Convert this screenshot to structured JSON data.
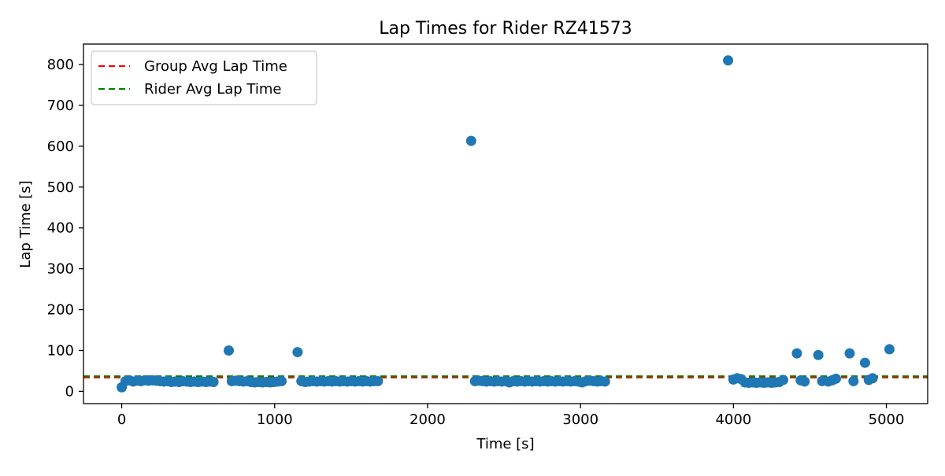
{
  "chart_data": {
    "type": "scatter",
    "title": "Lap Times for Rider RZ41573",
    "xlabel": "Time [s]",
    "ylabel": "Lap Time [s]",
    "xlim": [
      -250,
      5270
    ],
    "ylim": [
      -30,
      850
    ],
    "xticks": [
      0,
      1000,
      2000,
      3000,
      4000,
      5000
    ],
    "yticks": [
      0,
      100,
      200,
      300,
      400,
      500,
      600,
      700,
      800
    ],
    "grid": false,
    "legend_position": "top-left",
    "colors": {
      "points": "#1f77b4",
      "group_avg": "#ff0000",
      "rider_avg": "#008000"
    },
    "reference_lines": [
      {
        "name": "Group Avg Lap Time",
        "y": 34,
        "color": "#ff0000",
        "style": "dashed"
      },
      {
        "name": "Rider Avg Lap Time",
        "y": 37,
        "color": "#008000",
        "style": "dashed"
      }
    ],
    "series": [
      {
        "x": [
          0,
          25,
          50,
          75,
          100,
          125,
          150,
          175,
          200,
          225,
          250,
          275,
          300,
          325,
          350,
          375,
          400,
          425,
          450,
          475,
          500,
          525,
          550,
          575,
          600,
          700,
          720,
          745,
          770,
          795,
          820,
          845,
          870,
          895,
          920,
          945,
          970,
          995,
          1020,
          1045,
          1150,
          1175,
          1200,
          1225,
          1250,
          1275,
          1300,
          1325,
          1350,
          1375,
          1400,
          1425,
          1450,
          1475,
          1500,
          1525,
          1550,
          1575,
          1600,
          1625,
          1650,
          1675,
          2285,
          2310,
          2335,
          2360,
          2385,
          2410,
          2435,
          2460,
          2485,
          2510,
          2535,
          2560,
          2585,
          2610,
          2635,
          2660,
          2685,
          2710,
          2735,
          2760,
          2785,
          2810,
          2835,
          2860,
          2885,
          2910,
          2935,
          2960,
          2985,
          3010,
          3035,
          3060,
          3085,
          3110,
          3135,
          3160,
          3965,
          4000,
          4025,
          4050,
          4075,
          4100,
          4125,
          4150,
          4175,
          4200,
          4225,
          4250,
          4275,
          4300,
          4325,
          4415,
          4440,
          4465,
          4555,
          4580,
          4620,
          4645,
          4670,
          4760,
          4785,
          4860,
          4885,
          4910,
          5020
        ],
        "y": [
          10,
          25,
          27,
          24,
          26,
          25,
          27,
          26,
          27,
          26,
          25,
          24,
          25,
          23,
          24,
          23,
          25,
          24,
          23,
          24,
          23,
          24,
          23,
          24,
          23,
          100,
          25,
          26,
          25,
          24,
          25,
          23,
          22,
          23,
          22,
          23,
          22,
          23,
          24,
          25,
          96,
          25,
          23,
          24,
          25,
          24,
          25,
          24,
          25,
          24,
          25,
          24,
          25,
          24,
          25,
          24,
          25,
          24,
          25,
          24,
          25,
          25,
          613,
          25,
          26,
          25,
          24,
          25,
          24,
          25,
          24,
          25,
          22,
          25,
          24,
          25,
          24,
          25,
          24,
          25,
          24,
          25,
          24,
          25,
          24,
          25,
          24,
          25,
          24,
          25,
          24,
          22,
          25,
          26,
          25,
          24,
          25,
          24,
          810,
          29,
          32,
          30,
          22,
          21,
          22,
          21,
          22,
          21,
          22,
          21,
          22,
          23,
          28,
          93,
          27,
          24,
          89,
          25,
          24,
          27,
          31,
          93,
          25,
          70,
          28,
          32,
          103
        ]
      }
    ]
  }
}
